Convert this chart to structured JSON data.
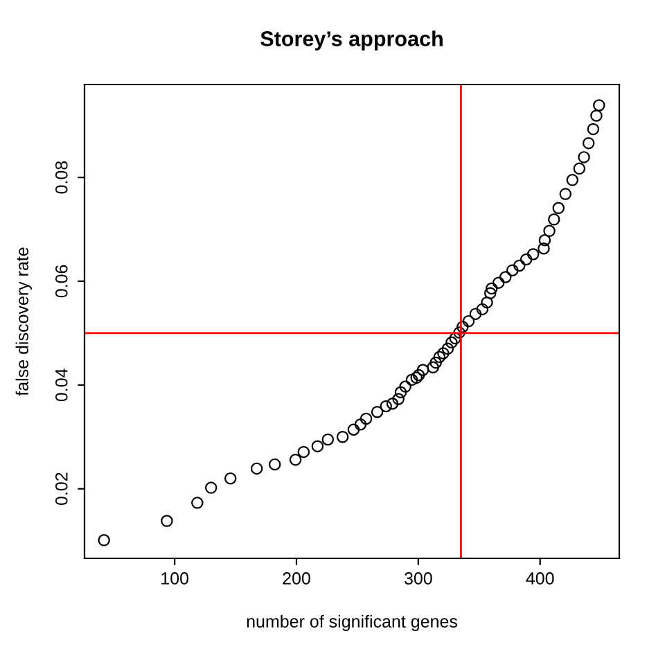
{
  "chart_data": {
    "type": "scatter",
    "title": "Storey’s approach",
    "xlabel": "number of significant genes",
    "ylabel": "false discovery rate",
    "series": [
      {
        "color": "#000000",
        "x": [
          42,
          93.6,
          118.6,
          129.9,
          145.8,
          167.4,
          182.2,
          199.2,
          205.9,
          217.3,
          225.8,
          237.9,
          246.9,
          252.6,
          257.2,
          266.3,
          273.5,
          278.8,
          283.7,
          285.6,
          289.4,
          294.7,
          298.5,
          300.4,
          303.8,
          312.1,
          314.4,
          317.4,
          320.5,
          324.2,
          327.3,
          330.3,
          333.7,
          336.4,
          341.3,
          347,
          352.6,
          356.4,
          359.1,
          360.2,
          365.9,
          371.6,
          377.3,
          383,
          388.6,
          394.3,
          403,
          403.8,
          407.6,
          411.4,
          415.1,
          420.8,
          426.5,
          432.2,
          436,
          439.8,
          443.6,
          446.2,
          448.4
        ],
        "values": [
          0.0101,
          0.0138,
          0.0173,
          0.0202,
          0.022,
          0.0239,
          0.0247,
          0.0256,
          0.0271,
          0.0282,
          0.0295,
          0.03,
          0.0314,
          0.0324,
          0.0335,
          0.0348,
          0.0359,
          0.0364,
          0.0373,
          0.0386,
          0.0397,
          0.041,
          0.0414,
          0.0419,
          0.0429,
          0.0434,
          0.0443,
          0.0454,
          0.0461,
          0.047,
          0.0482,
          0.049,
          0.0501,
          0.0512,
          0.0523,
          0.0537,
          0.0546,
          0.0559,
          0.0577,
          0.0586,
          0.0597,
          0.0608,
          0.0621,
          0.063,
          0.0642,
          0.0652,
          0.0663,
          0.0679,
          0.0697,
          0.0719,
          0.0741,
          0.0768,
          0.0795,
          0.0817,
          0.0839,
          0.0866,
          0.0893,
          0.0919,
          0.0939
        ]
      }
    ],
    "marker": "circle",
    "xlim": [
      26,
      465
    ],
    "ylim": [
      0.0066,
      0.0979
    ],
    "xticks": [
      100,
      200,
      300,
      400
    ],
    "yticks": [
      0.02,
      0.04,
      0.06,
      0.08
    ],
    "ref_lines": [
      {
        "axis": "x",
        "value": 335,
        "color": "#ff0000"
      },
      {
        "axis": "y",
        "value": 0.05,
        "color": "#ff0000"
      }
    ],
    "grid": false,
    "legend": false
  }
}
